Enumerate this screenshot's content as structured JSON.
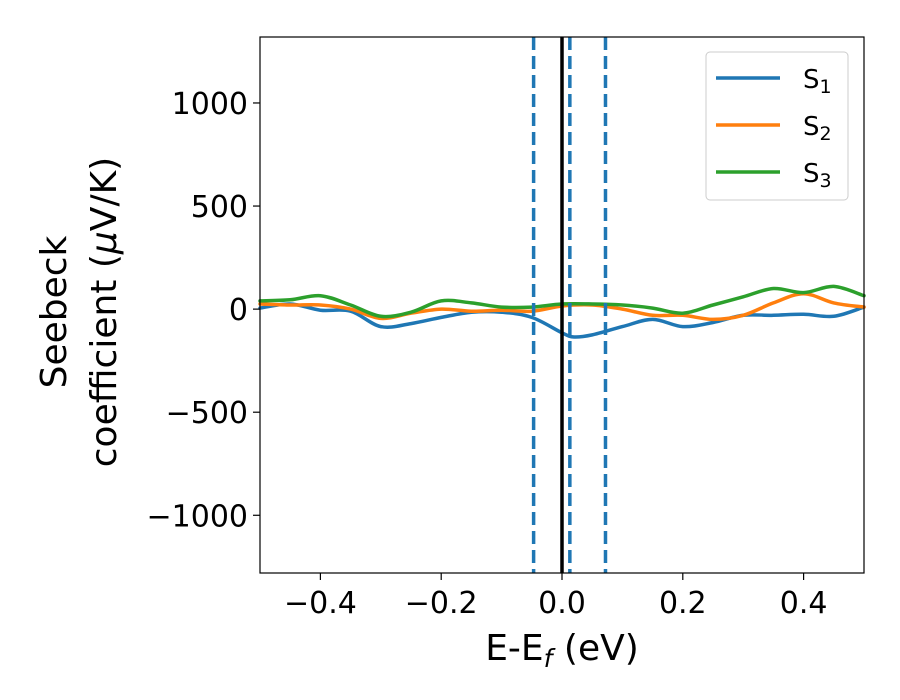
{
  "chart_data": {
    "type": "line",
    "xlabel": "E-E",
    "xlabel_subscript": "f",
    "xlabel_unit": " (eV)",
    "ylabel_line1": "Seebeck",
    "ylabel_line2_prefix": "coefficient  (",
    "ylabel_mu": "μ",
    "ylabel_line2_suffix": "V/K)",
    "xlim": [
      -0.5,
      0.5
    ],
    "ylim": [
      -1280,
      1320
    ],
    "xticks": [
      -0.4,
      -0.2,
      0.0,
      0.2,
      0.4
    ],
    "xtick_labels": [
      "−0.4",
      "−0.2",
      "0.0",
      "0.2",
      "0.4"
    ],
    "yticks": [
      -1000,
      -500,
      0,
      500,
      1000
    ],
    "ytick_labels": [
      "−1000",
      "−500",
      "0",
      "500",
      "1000"
    ],
    "legend_position": "top-right",
    "series": [
      {
        "name": "S",
        "sub": "1",
        "color": "#1f77b4",
        "x": [
          -0.5,
          -0.45,
          -0.4,
          -0.35,
          -0.3,
          -0.25,
          -0.2,
          -0.15,
          -0.1,
          -0.05,
          0.0,
          0.02,
          0.05,
          0.1,
          0.15,
          0.2,
          0.25,
          0.3,
          0.35,
          0.4,
          0.45,
          0.5
        ],
        "y": [
          5,
          25,
          -5,
          -10,
          -85,
          -70,
          -40,
          -15,
          -15,
          -40,
          -115,
          -135,
          -125,
          -85,
          -50,
          -85,
          -65,
          -30,
          -30,
          -25,
          -35,
          10
        ]
      },
      {
        "name": "S",
        "sub": "2",
        "color": "#ff7f0e",
        "x": [
          -0.5,
          -0.45,
          -0.4,
          -0.35,
          -0.3,
          -0.25,
          -0.2,
          -0.15,
          -0.1,
          -0.05,
          0.0,
          0.05,
          0.1,
          0.15,
          0.2,
          0.25,
          0.3,
          0.35,
          0.4,
          0.45,
          0.5
        ],
        "y": [
          25,
          20,
          20,
          0,
          -45,
          -20,
          0,
          -10,
          -5,
          -10,
          15,
          20,
          0,
          -30,
          -30,
          -50,
          -30,
          30,
          75,
          30,
          10
        ]
      },
      {
        "name": "S",
        "sub": "3",
        "color": "#2ca02c",
        "x": [
          -0.5,
          -0.45,
          -0.4,
          -0.35,
          -0.3,
          -0.25,
          -0.2,
          -0.15,
          -0.1,
          -0.05,
          0.0,
          0.05,
          0.1,
          0.15,
          0.2,
          0.25,
          0.3,
          0.35,
          0.4,
          0.45,
          0.5
        ],
        "y": [
          40,
          45,
          65,
          20,
          -35,
          -15,
          40,
          30,
          10,
          10,
          25,
          25,
          20,
          5,
          -20,
          20,
          60,
          100,
          80,
          110,
          65
        ]
      }
    ],
    "vlines": [
      {
        "x": -0.047,
        "style": "dashed",
        "color": "#1f77b4"
      },
      {
        "x": 0.013,
        "style": "dashed",
        "color": "#1f77b4"
      },
      {
        "x": 0.072,
        "style": "dashed",
        "color": "#1f77b4"
      },
      {
        "x": 0.0,
        "style": "solid",
        "color": "#000000"
      }
    ]
  }
}
